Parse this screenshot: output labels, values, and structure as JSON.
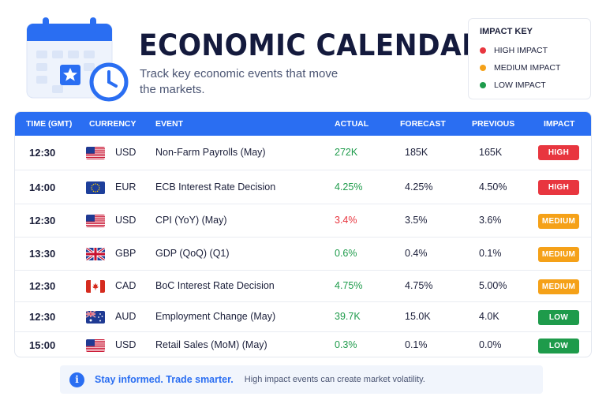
{
  "header": {
    "title": "ECONOMIC CALENDAR",
    "subtitle": "Track key economic events that move the markets.",
    "icon": "calendar-clock-icon"
  },
  "impact_key": {
    "title": "IMPACT KEY",
    "items": [
      {
        "label": "HIGH IMPACT",
        "color": "#e8363f"
      },
      {
        "label": "MEDIUM IMPACT",
        "color": "#f5a118"
      },
      {
        "label": "LOW IMPACT",
        "color": "#1e9b4b"
      }
    ]
  },
  "table": {
    "columns": [
      "TIME (GMT)",
      "CURRENCY",
      "EVENT",
      "ACTUAL",
      "FORECAST",
      "PREVIOUS",
      "IMPACT"
    ],
    "rows": [
      {
        "time": "12:30",
        "flag": "us-flag",
        "currency": "USD",
        "event": "Non-Farm Payrolls (May)",
        "actual": "272K",
        "actual_color": "#1e9b4b",
        "forecast": "185K",
        "previous": "165K",
        "impact": "HIGH",
        "impact_color": "#e8363f"
      },
      {
        "time": "14:00",
        "flag": "eu-flag",
        "currency": "EUR",
        "event": "ECB Interest Rate Decision",
        "actual": "4.25%",
        "actual_color": "#1e9b4b",
        "forecast": "4.25%",
        "previous": "4.50%",
        "impact": "HIGH",
        "impact_color": "#e8363f"
      },
      {
        "time": "12:30",
        "flag": "us-flag",
        "currency": "USD",
        "event": "CPI (YoY) (May)",
        "actual": "3.4%",
        "actual_color": "#e8363f",
        "forecast": "3.5%",
        "previous": "3.6%",
        "impact": "MEDIUM",
        "impact_color": "#f5a118"
      },
      {
        "time": "13:30",
        "flag": "uk-flag",
        "currency": "GBP",
        "event": "GDP (QoQ) (Q1)",
        "actual": "0.6%",
        "actual_color": "#1e9b4b",
        "forecast": "0.4%",
        "previous": "0.1%",
        "impact": "MEDIUM",
        "impact_color": "#f5a118"
      },
      {
        "time": "12:30",
        "flag": "ca-flag",
        "currency": "CAD",
        "event": "BoC Interest Rate Decision",
        "actual": "4.75%",
        "actual_color": "#1e9b4b",
        "forecast": "4.75%",
        "previous": "5.00%",
        "impact": "MEDIUM",
        "impact_color": "#f5a118"
      },
      {
        "time": "12:30",
        "flag": "au-flag",
        "currency": "AUD",
        "event": "Employment Change (May)",
        "actual": "39.7K",
        "actual_color": "#1e9b4b",
        "forecast": "15.0K",
        "previous": "4.0K",
        "impact": "LOW",
        "impact_color": "#1e9b4b"
      },
      {
        "time": "15:00",
        "flag": "us-flag",
        "currency": "USD",
        "event": "Retail Sales (MoM) (May)",
        "actual": "0.3%",
        "actual_color": "#1e9b4b",
        "forecast": "0.1%",
        "previous": "0.0%",
        "impact": "LOW",
        "impact_color": "#1e9b4b"
      }
    ]
  },
  "footer": {
    "icon": "info-icon",
    "headline": "Stay informed. Trade smarter.",
    "text": "High impact events can create market volatility."
  }
}
